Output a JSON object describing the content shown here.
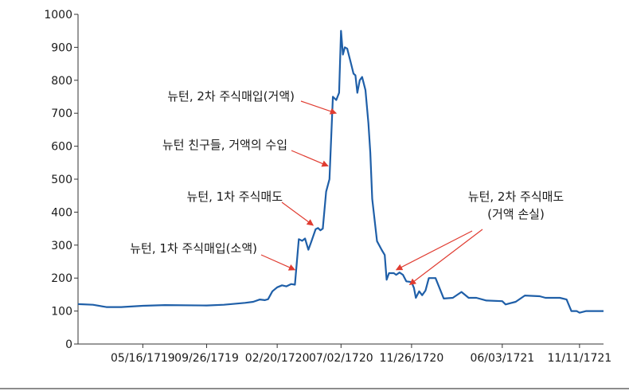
{
  "chart_data": {
    "type": "line",
    "title": "",
    "xlabel": "",
    "ylabel": "",
    "ylim": [
      0,
      1000
    ],
    "yticks": [
      0,
      100,
      200,
      300,
      400,
      500,
      600,
      700,
      800,
      900,
      1000
    ],
    "xticks": [
      "05/16/1719",
      "09/26/1719",
      "02/20/1720",
      "07/02/1720",
      "11/26/1720",
      "06/03/1721",
      "11/11/1721"
    ],
    "xrange": [
      "01/01/1719",
      "12/31/1721"
    ],
    "grid": false,
    "line_color": "#1f5fa8",
    "annotation_color": "#e03c31",
    "series": [
      {
        "points": [
          [
            "01/01/1719",
            121
          ],
          [
            "02/01/1719",
            119
          ],
          [
            "03/01/1719",
            112
          ],
          [
            "04/01/1719",
            112
          ],
          [
            "05/16/1719",
            116
          ],
          [
            "07/01/1719",
            118
          ],
          [
            "09/26/1719",
            117
          ],
          [
            "11/01/1719",
            119
          ],
          [
            "12/15/1719",
            125
          ],
          [
            "01/01/1720",
            128
          ],
          [
            "01/15/1720",
            135
          ],
          [
            "01/25/1720",
            133
          ],
          [
            "02/01/1720",
            136
          ],
          [
            "02/10/1720",
            160
          ],
          [
            "02/20/1720",
            172
          ],
          [
            "03/01/1720",
            178
          ],
          [
            "03/10/1720",
            175
          ],
          [
            "03/20/1720",
            182
          ],
          [
            "03/28/1720",
            180
          ],
          [
            "04/05/1720",
            318
          ],
          [
            "04/12/1720",
            313
          ],
          [
            "04/18/1720",
            320
          ],
          [
            "04/25/1720",
            286
          ],
          [
            "05/01/1720",
            310
          ],
          [
            "05/10/1720",
            348
          ],
          [
            "05/15/1720",
            352
          ],
          [
            "05/20/1720",
            345
          ],
          [
            "05/25/1720",
            350
          ],
          [
            "06/01/1720",
            462
          ],
          [
            "06/08/1720",
            500
          ],
          [
            "06/15/1720",
            750
          ],
          [
            "06/22/1720",
            740
          ],
          [
            "06/28/1720",
            762
          ],
          [
            "07/02/1720",
            950
          ],
          [
            "07/06/1720",
            878
          ],
          [
            "07/10/1720",
            900
          ],
          [
            "07/15/1720",
            896
          ],
          [
            "07/22/1720",
            855
          ],
          [
            "07/28/1720",
            820
          ],
          [
            "08/01/1720",
            815
          ],
          [
            "08/05/1720",
            762
          ],
          [
            "08/10/1720",
            800
          ],
          [
            "08/15/1720",
            810
          ],
          [
            "08/22/1720",
            770
          ],
          [
            "08/28/1720",
            670
          ],
          [
            "09/01/1720",
            580
          ],
          [
            "09/05/1720",
            440
          ],
          [
            "09/15/1720",
            312
          ],
          [
            "09/25/1720",
            285
          ],
          [
            "10/01/1720",
            270
          ],
          [
            "10/05/1720",
            195
          ],
          [
            "10/10/1720",
            215
          ],
          [
            "10/20/1720",
            215
          ],
          [
            "10/25/1720",
            210
          ],
          [
            "11/01/1720",
            217
          ],
          [
            "11/08/1720",
            210
          ],
          [
            "11/15/1720",
            190
          ],
          [
            "11/26/1720",
            188
          ],
          [
            "12/01/1720",
            170
          ],
          [
            "12/05/1720",
            140
          ],
          [
            "12/12/1720",
            160
          ],
          [
            "12/18/1720",
            148
          ],
          [
            "12/25/1720",
            162
          ],
          [
            "01/01/1721",
            200
          ],
          [
            "01/15/1721",
            200
          ],
          [
            "02/01/1721",
            138
          ],
          [
            "02/20/1721",
            140
          ],
          [
            "03/10/1721",
            158
          ],
          [
            "03/25/1721",
            140
          ],
          [
            "04/10/1721",
            140
          ],
          [
            "05/01/1721",
            132
          ],
          [
            "06/03/1721",
            130
          ],
          [
            "06/10/1721",
            120
          ],
          [
            "07/01/1721",
            128
          ],
          [
            "07/20/1721",
            147
          ],
          [
            "08/20/1721",
            145
          ],
          [
            "09/01/1721",
            140
          ],
          [
            "10/01/1721",
            140
          ],
          [
            "10/15/1721",
            135
          ],
          [
            "10/25/1721",
            100
          ],
          [
            "11/05/1721",
            100
          ],
          [
            "11/11/1721",
            95
          ],
          [
            "11/25/1721",
            100
          ],
          [
            "12/31/1721",
            100
          ]
        ]
      }
    ],
    "annotations": [
      {
        "lines": [
          "뉴턴, 2차 주식매입(거액)"
        ],
        "point": [
          "06/22/1720",
          700
        ]
      },
      {
        "lines": [
          "뉴턴 친구들, 거액의 수입"
        ],
        "point": [
          "06/05/1720",
          540
        ]
      },
      {
        "lines": [
          "뉴턴, 1차 주식매도"
        ],
        "point": [
          "05/05/1720",
          360
        ]
      },
      {
        "lines": [
          "뉴턴, 1차 주식매입(소액)"
        ],
        "point": [
          "03/28/1720",
          225
        ]
      },
      {
        "lines": [
          "뉴턴, 2차 주식매도",
          "(거액 손실)"
        ],
        "point": [
          "10/25/1720",
          225
        ],
        "point2": [
          "11/22/1720",
          180
        ]
      }
    ]
  }
}
